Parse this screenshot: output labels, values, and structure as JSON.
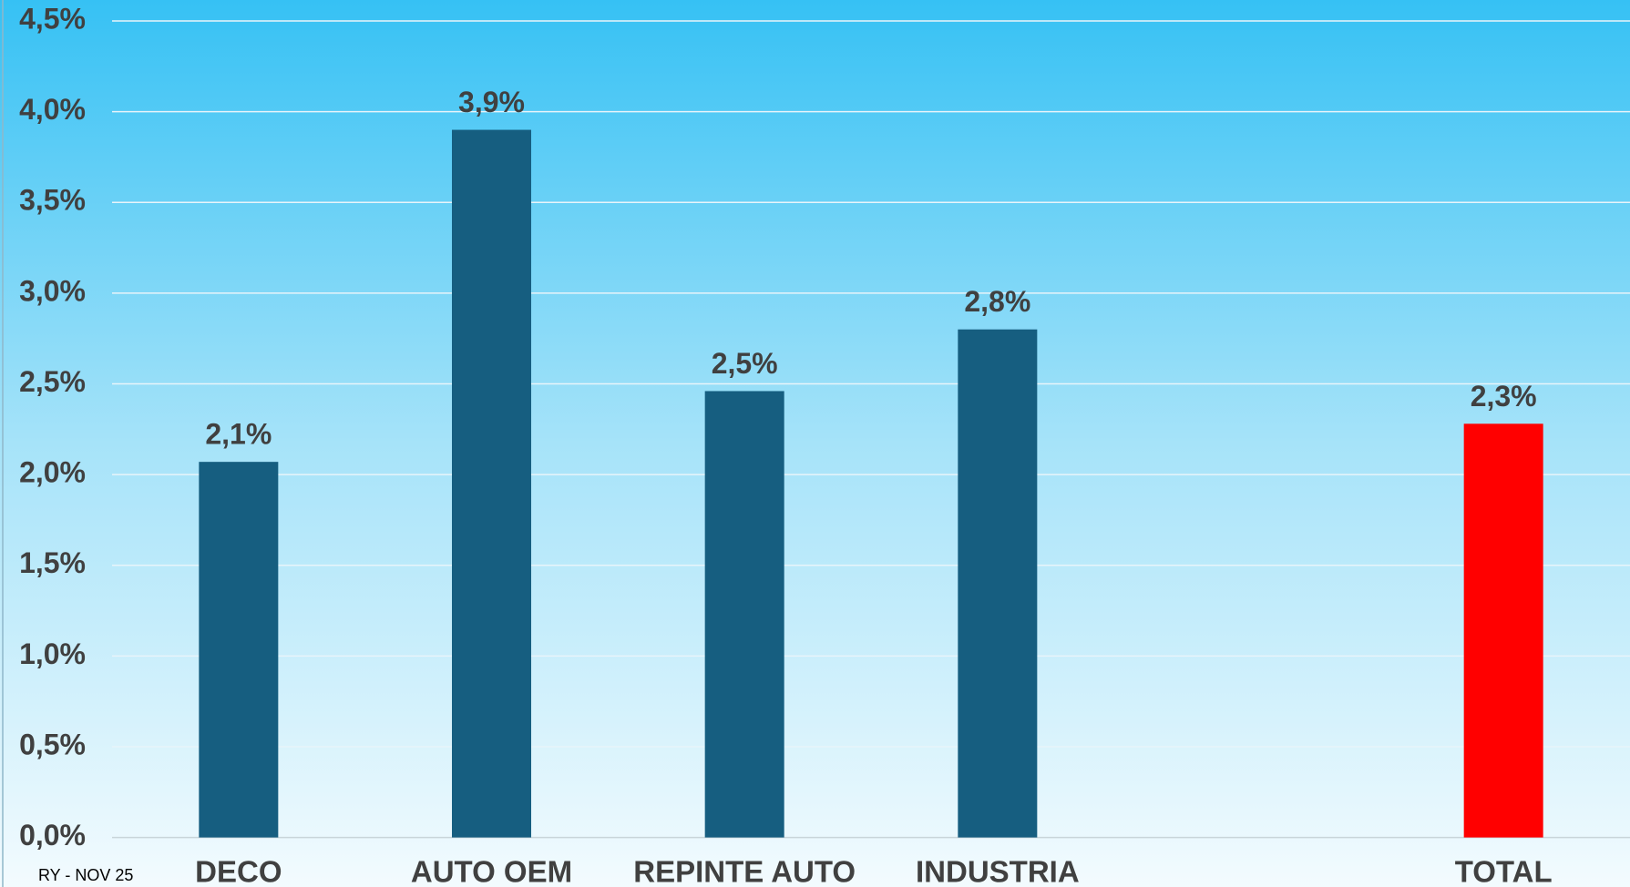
{
  "chart_data": {
    "type": "bar",
    "categories": [
      "DECO",
      "AUTO OEM",
      "REPINTE AUTO",
      "INDUSTRIA",
      null,
      "TOTAL"
    ],
    "values": [
      2.07,
      3.9,
      2.46,
      2.8,
      null,
      2.28
    ],
    "value_labels": [
      "2,1%",
      "3,9%",
      "2,5%",
      "2,8%",
      null,
      "2,3%"
    ],
    "colors": [
      "#165e80",
      "#165e80",
      "#165e80",
      "#165e80",
      "#165e80",
      "#ff0000"
    ],
    "ylim": [
      0,
      4.5
    ],
    "yticks": [
      {
        "value": 0,
        "label": "0,0%"
      },
      {
        "value": 0.5,
        "label": "0,5%"
      },
      {
        "value": 1,
        "label": "1,0%"
      },
      {
        "value": 1.5,
        "label": "1,5%"
      },
      {
        "value": 2,
        "label": "2,0%"
      },
      {
        "value": 2.5,
        "label": "2,5%"
      },
      {
        "value": 3,
        "label": "3,0%"
      },
      {
        "value": 3.5,
        "label": "3,5%"
      },
      {
        "value": 4,
        "label": "4,0%"
      },
      {
        "value": 4.5,
        "label": "4,5%"
      }
    ],
    "grid": true,
    "annotation": "RY - NOV 25"
  }
}
